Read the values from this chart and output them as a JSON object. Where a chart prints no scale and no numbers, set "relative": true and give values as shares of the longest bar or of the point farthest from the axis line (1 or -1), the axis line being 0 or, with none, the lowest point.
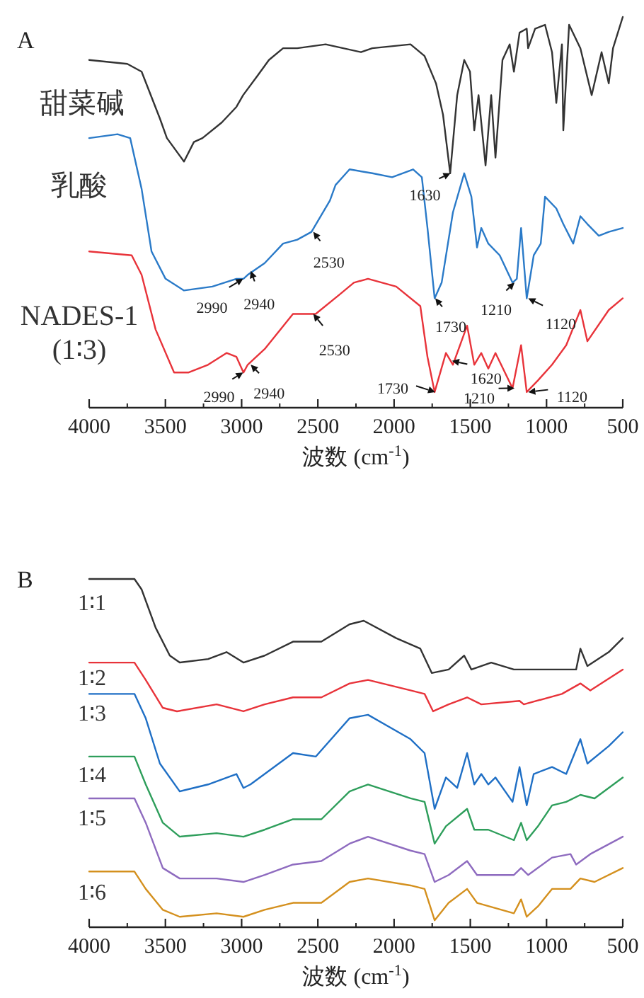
{
  "chart_data": [
    {
      "type": "line",
      "title": "A",
      "xlabel": "波数 (cm$^{-1}$)",
      "xlim": [
        4000,
        500
      ],
      "xticks": [
        4000,
        3500,
        3000,
        2500,
        2000,
        1500,
        1000,
        500
      ],
      "relative": true,
      "series": [
        {
          "name": "甜菜碱",
          "color": "#333333",
          "x": [
            4000,
            3750,
            3656,
            3536,
            3490,
            3378,
            3313,
            3257,
            3130,
            3034,
            2990,
            2895,
            2821,
            2728,
            2635,
            2449,
            2217,
            2143,
            1892,
            1800,
            1725,
            1679,
            1632,
            1586,
            1540,
            1502,
            1474,
            1446,
            1400,
            1363,
            1335,
            1289,
            1242,
            1214,
            1177,
            1130,
            1121,
            1075,
            1010,
            964,
            936,
            899,
            890,
            852,
            778,
            704,
            639,
            592,
            564,
            500
          ],
          "values": [
            0.89,
            0.88,
            0.86,
            0.74,
            0.69,
            0.63,
            0.68,
            0.69,
            0.73,
            0.77,
            0.8,
            0.85,
            0.89,
            0.92,
            0.92,
            0.93,
            0.91,
            0.92,
            0.93,
            0.9,
            0.83,
            0.75,
            0.6,
            0.8,
            0.89,
            0.86,
            0.71,
            0.8,
            0.62,
            0.8,
            0.64,
            0.89,
            0.93,
            0.86,
            0.96,
            0.97,
            0.92,
            0.97,
            0.98,
            0.91,
            0.78,
            0.93,
            0.71,
            0.98,
            0.92,
            0.8,
            0.91,
            0.83,
            0.92,
            1.0
          ]
        },
        {
          "name": "乳酸",
          "color": "#2a7ac8",
          "x": [
            4000,
            3814,
            3731,
            3656,
            3591,
            3499,
            3378,
            3192,
            3034,
            2988,
            2960,
            2849,
            2728,
            2635,
            2542,
            2421,
            2384,
            2292,
            2143,
            2013,
            1875,
            1818,
            1781,
            1734,
            1688,
            1614,
            1540,
            1493,
            1456,
            1428,
            1382,
            1307,
            1223,
            1195,
            1167,
            1130,
            1084,
            1038,
            1010,
            936,
            890,
            825,
            778,
            732,
            657,
            592,
            500
          ],
          "values": [
            0.69,
            0.7,
            0.69,
            0.56,
            0.4,
            0.33,
            0.3,
            0.31,
            0.33,
            0.33,
            0.34,
            0.37,
            0.42,
            0.43,
            0.45,
            0.53,
            0.57,
            0.61,
            0.6,
            0.59,
            0.61,
            0.59,
            0.46,
            0.28,
            0.32,
            0.5,
            0.6,
            0.54,
            0.41,
            0.46,
            0.42,
            0.39,
            0.32,
            0.33,
            0.46,
            0.28,
            0.39,
            0.42,
            0.54,
            0.51,
            0.47,
            0.42,
            0.49,
            0.47,
            0.44,
            0.45,
            0.46
          ]
        },
        {
          "name": "NADES-1 (1∶3)",
          "color": "#e8333a",
          "x": [
            4000,
            3721,
            3656,
            3564,
            3443,
            3350,
            3220,
            3099,
            3034,
            2988,
            2960,
            2849,
            2663,
            2514,
            2356,
            2264,
            2171,
            1986,
            1828,
            1781,
            1734,
            1660,
            1614,
            1521,
            1474,
            1428,
            1382,
            1335,
            1223,
            1167,
            1130,
            1056,
            964,
            871,
            778,
            732,
            592,
            500
          ],
          "values": [
            0.4,
            0.39,
            0.34,
            0.2,
            0.09,
            0.09,
            0.11,
            0.14,
            0.13,
            0.09,
            0.11,
            0.15,
            0.24,
            0.24,
            0.29,
            0.32,
            0.33,
            0.31,
            0.26,
            0.13,
            0.04,
            0.14,
            0.11,
            0.21,
            0.11,
            0.14,
            0.1,
            0.14,
            0.05,
            0.16,
            0.04,
            0.07,
            0.11,
            0.16,
            0.25,
            0.17,
            0.25,
            0.28
          ]
        }
      ],
      "annotations": [
        {
          "text": "2990",
          "x": 2990,
          "y": 0.33
        },
        {
          "text": "2940",
          "x": 2940,
          "y": 0.35
        },
        {
          "text": "2530",
          "x": 2530,
          "y": 0.45
        },
        {
          "text": "1630",
          "x": 1630,
          "y": 0.6
        },
        {
          "text": "1730",
          "x": 1730,
          "y": 0.28
        },
        {
          "text": "1210",
          "x": 1210,
          "y": 0.32
        },
        {
          "text": "1120",
          "x": 1120,
          "y": 0.28
        },
        {
          "text": "2990",
          "x": 2990,
          "y": 0.09
        },
        {
          "text": "2940",
          "x": 2940,
          "y": 0.11
        },
        {
          "text": "2530",
          "x": 2530,
          "y": 0.24
        },
        {
          "text": "1730",
          "x": 1730,
          "y": 0.04
        },
        {
          "text": "1620",
          "x": 1620,
          "y": 0.12
        },
        {
          "text": "1210",
          "x": 1210,
          "y": 0.05
        },
        {
          "text": "1120",
          "x": 1120,
          "y": 0.04
        }
      ]
    },
    {
      "type": "line",
      "title": "B",
      "xlabel": "波数 (cm$^{-1}$)",
      "xlim": [
        4000,
        500
      ],
      "xticks": [
        4000,
        3500,
        3000,
        2500,
        2000,
        1500,
        1000,
        500
      ],
      "relative": true,
      "series": [
        {
          "name": "1∶1",
          "color": "#333333",
          "x": [
            4000,
            3703,
            3656,
            3564,
            3471,
            3406,
            3220,
            3099,
            2988,
            2849,
            2663,
            2477,
            2292,
            2199,
            1986,
            1828,
            1753,
            1642,
            1540,
            1493,
            1363,
            1214,
            992,
            806,
            778,
            732,
            592,
            500
          ],
          "values": [
            1.0,
            1.0,
            0.97,
            0.86,
            0.78,
            0.76,
            0.77,
            0.79,
            0.76,
            0.78,
            0.82,
            0.82,
            0.87,
            0.88,
            0.83,
            0.8,
            0.73,
            0.74,
            0.78,
            0.74,
            0.76,
            0.74,
            0.74,
            0.74,
            0.8,
            0.75,
            0.79,
            0.83
          ]
        },
        {
          "name": "1∶2",
          "color": "#e8333a",
          "x": [
            4000,
            3703,
            3629,
            3517,
            3424,
            3164,
            2988,
            2849,
            2663,
            2477,
            2292,
            2171,
            1892,
            1800,
            1744,
            1642,
            1521,
            1428,
            1177,
            1149,
            899,
            778,
            713,
            500
          ],
          "values": [
            0.76,
            0.76,
            0.71,
            0.63,
            0.62,
            0.64,
            0.62,
            0.64,
            0.66,
            0.66,
            0.7,
            0.71,
            0.68,
            0.67,
            0.62,
            0.64,
            0.66,
            0.64,
            0.65,
            0.64,
            0.67,
            0.7,
            0.68,
            0.74
          ]
        },
        {
          "name": "1∶3",
          "color": "#1f6fc5",
          "x": [
            4000,
            3703,
            3629,
            3536,
            3406,
            3220,
            3034,
            2988,
            2942,
            2849,
            2663,
            2514,
            2292,
            2171,
            1892,
            1800,
            1734,
            1660,
            1586,
            1521,
            1474,
            1428,
            1382,
            1335,
            1223,
            1177,
            1130,
            1084,
            964,
            871,
            778,
            732,
            592,
            500
          ],
          "values": [
            0.67,
            0.67,
            0.6,
            0.47,
            0.39,
            0.41,
            0.44,
            0.4,
            0.41,
            0.44,
            0.5,
            0.49,
            0.6,
            0.61,
            0.54,
            0.5,
            0.34,
            0.43,
            0.4,
            0.5,
            0.41,
            0.44,
            0.41,
            0.43,
            0.36,
            0.46,
            0.35,
            0.44,
            0.46,
            0.44,
            0.54,
            0.47,
            0.52,
            0.56
          ]
        },
        {
          "name": "1∶4",
          "color": "#2e9e5b",
          "x": [
            4000,
            3703,
            3629,
            3517,
            3406,
            3164,
            2988,
            2849,
            2663,
            2477,
            2292,
            2171,
            1892,
            1800,
            1734,
            1660,
            1521,
            1474,
            1382,
            1214,
            1167,
            1130,
            1056,
            964,
            871,
            778,
            685,
            500
          ],
          "values": [
            0.49,
            0.49,
            0.41,
            0.3,
            0.26,
            0.27,
            0.26,
            0.28,
            0.31,
            0.31,
            0.39,
            0.41,
            0.37,
            0.36,
            0.24,
            0.29,
            0.34,
            0.28,
            0.28,
            0.25,
            0.3,
            0.25,
            0.29,
            0.35,
            0.36,
            0.38,
            0.37,
            0.43
          ]
        },
        {
          "name": "1∶5",
          "color": "#8e6bbf",
          "x": [
            4000,
            3703,
            3629,
            3517,
            3406,
            3164,
            2988,
            2849,
            2663,
            2477,
            2292,
            2171,
            1892,
            1800,
            1734,
            1642,
            1521,
            1456,
            1214,
            1167,
            1121,
            964,
            843,
            806,
            713,
            500
          ],
          "values": [
            0.37,
            0.37,
            0.3,
            0.17,
            0.14,
            0.14,
            0.13,
            0.15,
            0.18,
            0.19,
            0.24,
            0.26,
            0.22,
            0.21,
            0.13,
            0.15,
            0.19,
            0.15,
            0.15,
            0.17,
            0.15,
            0.2,
            0.21,
            0.18,
            0.21,
            0.26
          ]
        },
        {
          "name": "1∶6",
          "color": "#d4901e",
          "x": [
            4000,
            3703,
            3629,
            3517,
            3406,
            3164,
            2988,
            2849,
            2663,
            2477,
            2292,
            2171,
            1892,
            1800,
            1734,
            1642,
            1521,
            1456,
            1214,
            1167,
            1130,
            1056,
            964,
            843,
            778,
            685,
            500
          ],
          "values": [
            0.16,
            0.16,
            0.11,
            0.05,
            0.03,
            0.04,
            0.03,
            0.05,
            0.07,
            0.07,
            0.13,
            0.14,
            0.12,
            0.11,
            0.02,
            0.07,
            0.11,
            0.07,
            0.04,
            0.08,
            0.03,
            0.06,
            0.11,
            0.11,
            0.14,
            0.13,
            0.17
          ]
        }
      ]
    }
  ]
}
